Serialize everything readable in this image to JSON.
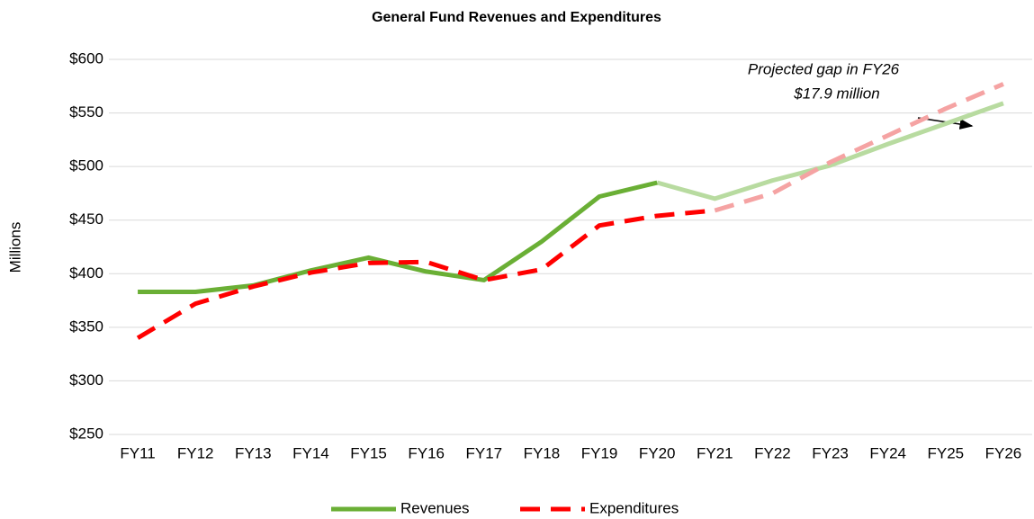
{
  "chart_data": {
    "type": "line",
    "title": "General Fund Revenues and Expenditures",
    "y_label": "Millions",
    "categories": [
      "FY11",
      "FY12",
      "FY13",
      "FY14",
      "FY15",
      "FY16",
      "FY17",
      "FY18",
      "FY19",
      "FY20",
      "FY21",
      "FY22",
      "FY23",
      "FY24",
      "FY25",
      "FY26"
    ],
    "series": [
      {
        "name": "Revenues",
        "color": "#6aaf35",
        "projected_color": "#b8dba0",
        "projected_from": "FY20",
        "dashed": false,
        "values": [
          383,
          383,
          389,
          403,
          415,
          402,
          394,
          430,
          472,
          485,
          470,
          487,
          501,
          521,
          540,
          559
        ]
      },
      {
        "name": "Expenditures",
        "color": "#ff0000",
        "projected_color": "#f5a3a3",
        "projected_from": "FY21",
        "dashed": true,
        "values": [
          340,
          372,
          388,
          401,
          410,
          411,
          394,
          404,
          445,
          454,
          459,
          475,
          504,
          529,
          554,
          577
        ]
      }
    ],
    "annotation": [
      "Projected gap in FY26",
      "$17.9 million"
    ],
    "ylim": [
      250,
      600
    ],
    "yticks": [
      {
        "value": 250,
        "label": "$250"
      },
      {
        "value": 300,
        "label": "$300"
      },
      {
        "value": 350,
        "label": "$350"
      },
      {
        "value": 400,
        "label": "$400"
      },
      {
        "value": 450,
        "label": "$450"
      },
      {
        "value": 500,
        "label": "$500"
      },
      {
        "value": 550,
        "label": "$550"
      },
      {
        "value": 600,
        "label": "$600"
      }
    ],
    "grid": true,
    "legend": "bottom"
  }
}
